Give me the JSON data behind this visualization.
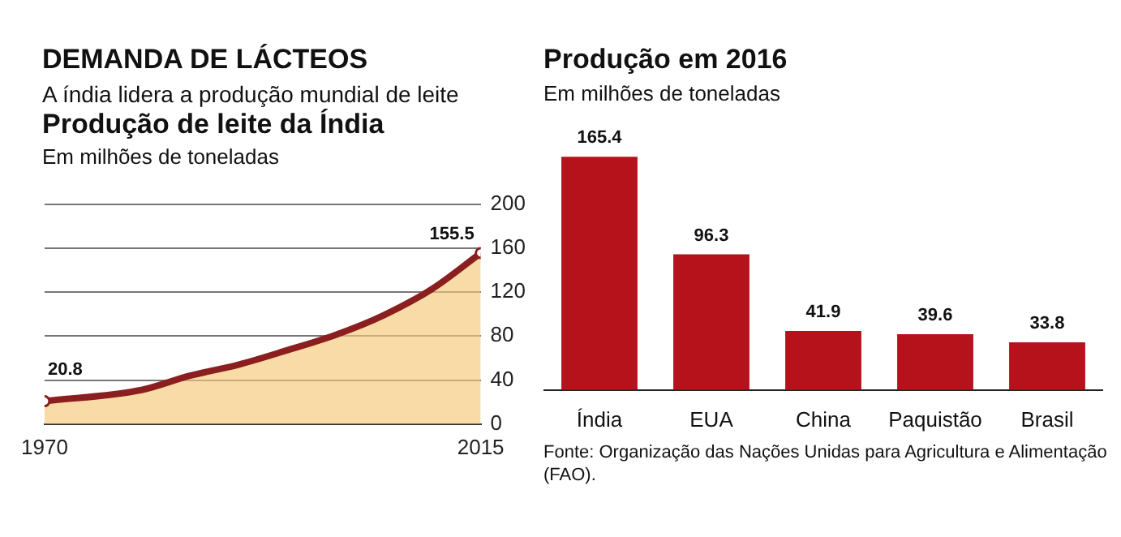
{
  "chart_data": [
    {
      "type": "area",
      "title": "Produção de leite da Índia",
      "subtitle": "Em milhões de toneladas",
      "annotations": [
        "DEMANDA DE LÁCTEOS",
        "A índia lidera a produção mundial de leite"
      ],
      "x": [
        1970,
        1980,
        1985,
        1990,
        1995,
        2000,
        2005,
        2010,
        2015
      ],
      "series": [
        {
          "color": "#8b1f1f",
          "values": [
            20.8,
            31,
            44,
            54,
            67,
            81,
            99,
            123,
            155.5
          ],
          "value_labels": [
            "20.8",
            null,
            null,
            null,
            null,
            null,
            null,
            null,
            "155.5"
          ]
        }
      ],
      "xlim": [
        1970,
        2015
      ],
      "xticks": [
        1970,
        2015
      ],
      "ylim": [
        0,
        200
      ],
      "yticks": [
        0,
        40,
        80,
        120,
        160,
        200
      ],
      "grid": "y"
    },
    {
      "type": "bar",
      "title": "Produção em 2016",
      "subtitle": "Em milhões de toneladas",
      "categories": [
        "Índia",
        "EUA",
        "China",
        "Paquistão",
        "Brasil"
      ],
      "values": [
        165.4,
        96.3,
        41.9,
        39.6,
        33.8
      ],
      "color": "#b5121b",
      "data_labels": true,
      "annotations": [
        "Fonte: Organização das Nações Unidas para Agricultura e Alimentação (FAO)."
      ]
    }
  ]
}
